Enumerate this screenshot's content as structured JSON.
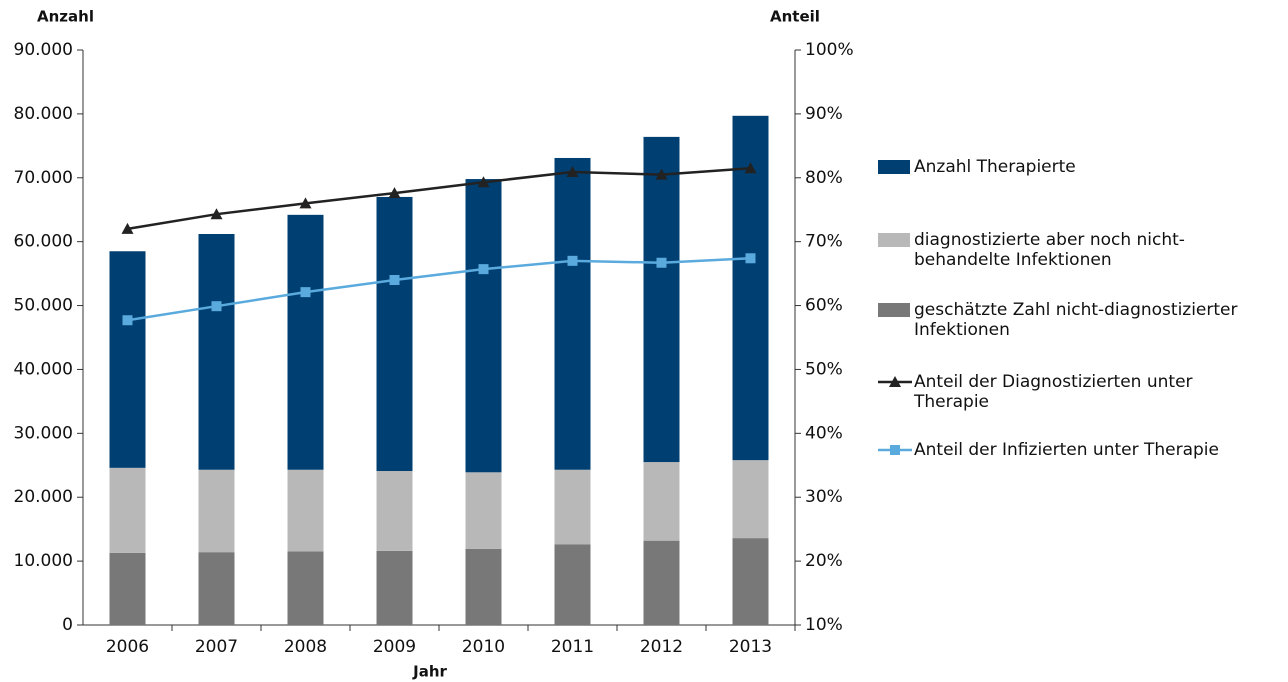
{
  "chart_data": {
    "type": "bar",
    "y_label": "Anzahl",
    "y2_label": "Anteil",
    "x_label": "Jahr",
    "categories": [
      "2006",
      "2007",
      "2008",
      "2009",
      "2010",
      "2011",
      "2012",
      "2013"
    ],
    "stacked": true,
    "series": [
      {
        "name": "Anzahl Therapierte",
        "type": "bar",
        "color": "#003f72",
        "values": [
          33900,
          36900,
          39900,
          42900,
          45900,
          48800,
          50900,
          53900
        ]
      },
      {
        "name": "diagnostizierte aber noch nicht-behandelte Infektionen",
        "type": "bar",
        "color": "#b8b8b8",
        "values": [
          13300,
          12900,
          12800,
          12500,
          12000,
          11700,
          12300,
          12200
        ]
      },
      {
        "name": "geschätzte Zahl nicht-diagnostizierter Infektionen",
        "type": "bar",
        "color": "#787878",
        "values": [
          11300,
          11400,
          11500,
          11600,
          11900,
          12600,
          13200,
          13600
        ]
      },
      {
        "name": "Anteil der Diagnostizierten unter Therapie",
        "type": "line",
        "axis": "y2",
        "marker": "triangle",
        "color": "#222222",
        "values": [
          72.0,
          74.3,
          76.0,
          77.6,
          79.3,
          80.9,
          80.5,
          81.5
        ]
      },
      {
        "name": "Anteil der Infizierten unter Therapie",
        "type": "line",
        "axis": "y2",
        "marker": "square",
        "color": "#5aaade",
        "values": [
          57.7,
          59.9,
          62.1,
          64.0,
          65.7,
          67.0,
          66.7,
          67.4
        ]
      }
    ],
    "ylim": [
      0,
      90000
    ],
    "yticks": [
      0,
      {
        "value": 10000,
        "label": "10.000"
      },
      {
        "value": 20000,
        "label": "20.000"
      },
      {
        "value": 30000,
        "label": "30.000"
      },
      {
        "value": 40000,
        "label": "40.000"
      },
      {
        "value": 50000,
        "label": "50.000"
      },
      {
        "value": 60000,
        "label": "60.000"
      },
      {
        "value": 70000,
        "label": "70.000"
      },
      {
        "value": 80000,
        "label": "80.000"
      },
      {
        "value": 90000,
        "label": "90.000"
      }
    ],
    "y2lim": [
      10,
      100
    ],
    "y2ticks": [
      {
        "value": 10,
        "label": "10%"
      },
      {
        "value": 20,
        "label": "20%"
      },
      {
        "value": 30,
        "label": "30%"
      },
      {
        "value": 40,
        "label": "40%"
      },
      {
        "value": 50,
        "label": "50%"
      },
      {
        "value": 60,
        "label": "60%"
      },
      {
        "value": 70,
        "label": "70%"
      },
      {
        "value": 80,
        "label": "80%"
      },
      {
        "value": 90,
        "label": "90%"
      },
      {
        "value": 100,
        "label": "100%"
      }
    ],
    "grid": false,
    "legend": "right"
  }
}
